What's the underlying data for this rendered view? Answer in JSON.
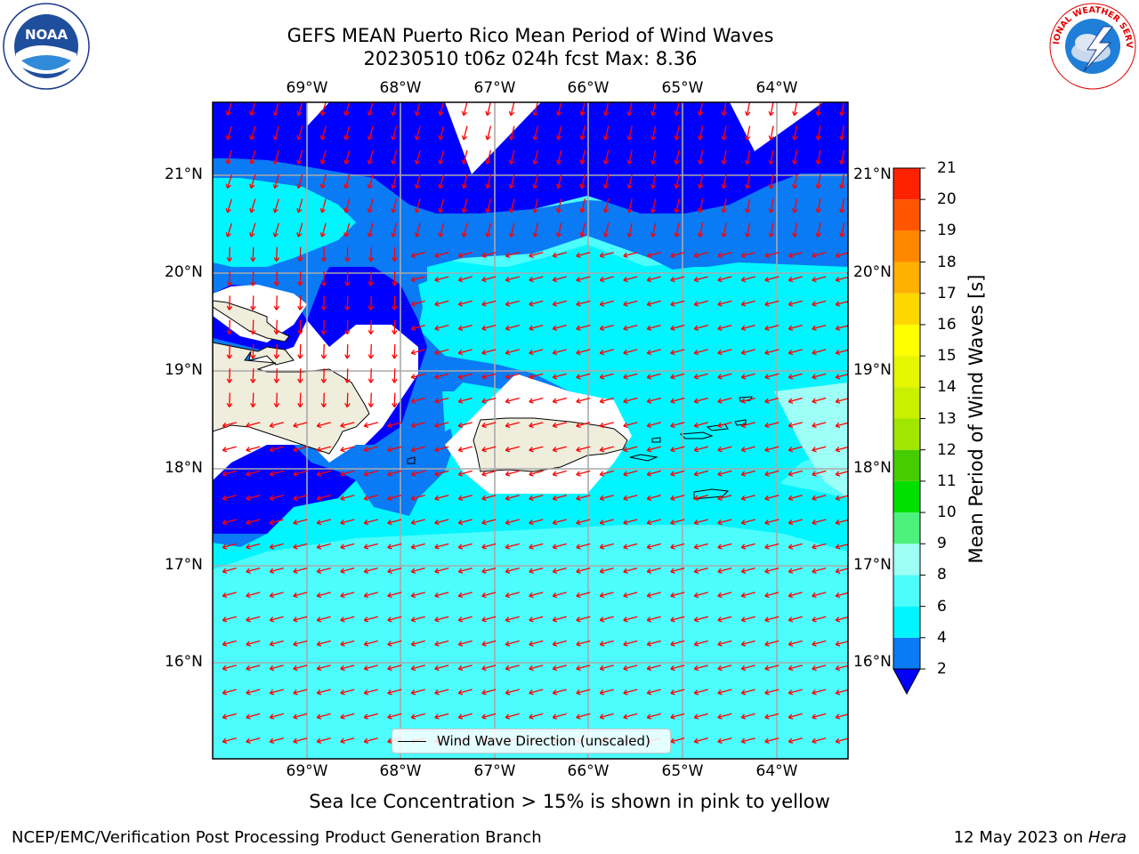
{
  "title_line1": "GEFS MEAN Puerto Rico Mean Period of Wind Waves",
  "title_line2": "20230510 t06z 024h fcst   Max: 8.36",
  "subtitle": "Sea Ice Concentration > 15% is shown in pink to yellow",
  "footer_left": "NCEP/EMC/Verification Post Processing Product Generation Branch",
  "footer_right_prefix": "12 May 2023 on ",
  "footer_right_host": "Hera",
  "legend_label": "Wind Wave Direction (unscaled)",
  "colorbar": {
    "label": "Mean Period of Wind Waves [s]",
    "ticks": [
      "2",
      "4",
      "6",
      "8",
      "9",
      "10",
      "11",
      "12",
      "13",
      "14",
      "15",
      "16",
      "17",
      "18",
      "19",
      "20",
      "21"
    ],
    "colors": [
      "#0000ff",
      "#0a7af5",
      "#00f5ff",
      "#4dfcfc",
      "#9dfff5",
      "#4cf27c",
      "#00e000",
      "#46cc00",
      "#a0e600",
      "#c8f000",
      "#e6f500",
      "#ffff00",
      "#ffd700",
      "#ffb000",
      "#ff8800",
      "#ff5500",
      "#ff2200",
      "#ff0000"
    ]
  },
  "map": {
    "lon_labels": [
      "69°W",
      "68°W",
      "67°W",
      "66°W",
      "65°W",
      "64°W"
    ],
    "lat_labels": [
      "21°N",
      "20°N",
      "19°N",
      "18°N",
      "17°N",
      "16°N"
    ],
    "arrow_color": "#ff0000",
    "land_color": "#efeddc"
  },
  "logos": {
    "noaa_text": "NOAA",
    "nws_text": "NATIONAL WEATHER SERVICE"
  }
}
